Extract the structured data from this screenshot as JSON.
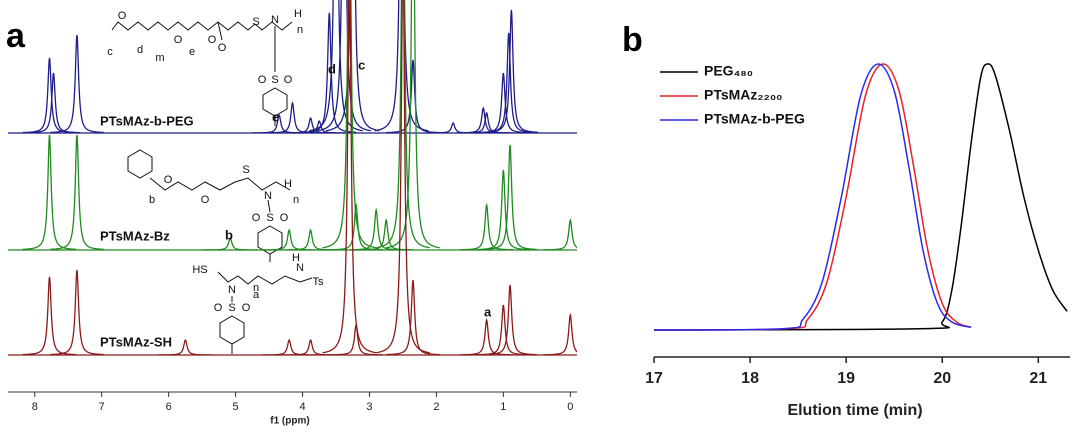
{
  "chart_data": [
    {
      "type": "spectrum",
      "panel_label": "a",
      "x_label": "f1 (ppm)",
      "xlim": [
        8.4,
        -0.1
      ],
      "xticks": [
        8,
        7,
        6,
        5,
        4,
        3,
        2,
        1,
        0
      ],
      "series": [
        {
          "name": "PTsMAz-b-PEG",
          "color": "#1c1c8a",
          "x": [
            7.78,
            7.72,
            7.37,
            4.35,
            4.15,
            3.88,
            3.75,
            3.6,
            3.5,
            3.38,
            3.25,
            2.52,
            2.35,
            1.75,
            1.3,
            1.25,
            1.0,
            0.92,
            0.88
          ],
          "values": [
            75,
            60,
            98,
            18,
            30,
            15,
            12,
            120,
            400,
            400,
            400,
            400,
            73,
            10,
            25,
            20,
            60,
            100,
            123
          ]
        },
        {
          "name": "PTsMAz-Bz",
          "color": "#1f8a1f",
          "x": [
            7.78,
            7.37,
            5.08,
            4.2,
            3.88,
            3.3,
            3.2,
            2.9,
            2.75,
            2.5,
            2.35,
            1.25,
            1.0,
            0.9,
            0.0
          ],
          "values": [
            115,
            115,
            12,
            20,
            20,
            400,
            45,
            40,
            30,
            400,
            400,
            45,
            80,
            105,
            30
          ]
        },
        {
          "name": "PTsMAz-SH",
          "color": "#8b1a1a",
          "x": [
            7.78,
            7.37,
            5.75,
            4.2,
            3.88,
            3.3,
            3.2,
            2.5,
            2.35,
            1.25,
            1.0,
            0.9,
            0.0
          ],
          "values": [
            78,
            85,
            15,
            15,
            15,
            400,
            30,
            400,
            75,
            35,
            50,
            70,
            40
          ]
        }
      ],
      "annotations": [
        "e",
        "d",
        "c",
        "b",
        "a"
      ],
      "structures": [
        {
          "labels": [
            "c",
            "O",
            "d",
            "m",
            "O",
            "e",
            "O",
            "O",
            "S",
            "N",
            "H",
            "n",
            "O",
            "S",
            "O"
          ]
        },
        {
          "labels": [
            "b",
            "O",
            "O",
            "S",
            "N",
            "H",
            "n",
            "O",
            "S",
            "O"
          ]
        },
        {
          "labels": [
            "HS",
            "N",
            "n",
            "O",
            "S",
            "O",
            "a",
            "N",
            "H",
            "Ts"
          ]
        }
      ]
    },
    {
      "type": "line",
      "panel_label": "b",
      "x_label": "Elution time (min)",
      "xlim": [
        17,
        21.33
      ],
      "xticks": [
        17,
        18,
        19,
        20,
        21
      ],
      "ylim": [
        0,
        1
      ],
      "series": [
        {
          "name": "PEG₄₈₀",
          "color": "#000000",
          "x": [
            17.0,
            19.8,
            20.0,
            20.1,
            20.2,
            20.3,
            20.4,
            20.47,
            20.55,
            20.7,
            20.85,
            21.0,
            21.15,
            21.3
          ],
          "values": [
            0,
            0.005,
            0.03,
            0.15,
            0.4,
            0.7,
            0.95,
            1.0,
            0.96,
            0.75,
            0.5,
            0.3,
            0.15,
            0.07
          ]
        },
        {
          "name": "PTsMAz₂₂₀₀",
          "color": "#e8202a",
          "x": [
            17.0,
            18.4,
            18.6,
            18.8,
            19.0,
            19.2,
            19.38,
            19.55,
            19.7,
            19.85,
            20.0,
            20.15,
            20.3
          ],
          "values": [
            0,
            0.005,
            0.04,
            0.18,
            0.5,
            0.88,
            1.0,
            0.9,
            0.62,
            0.3,
            0.1,
            0.03,
            0.01
          ]
        },
        {
          "name": "PTsMAz-b-PEG",
          "color": "#2a2ae8",
          "x": [
            17.0,
            18.35,
            18.55,
            18.75,
            18.95,
            19.15,
            19.33,
            19.5,
            19.65,
            19.8,
            19.95,
            20.1,
            20.3
          ],
          "values": [
            0,
            0.005,
            0.04,
            0.18,
            0.5,
            0.88,
            1.0,
            0.9,
            0.62,
            0.3,
            0.1,
            0.03,
            0.01
          ]
        }
      ]
    }
  ]
}
